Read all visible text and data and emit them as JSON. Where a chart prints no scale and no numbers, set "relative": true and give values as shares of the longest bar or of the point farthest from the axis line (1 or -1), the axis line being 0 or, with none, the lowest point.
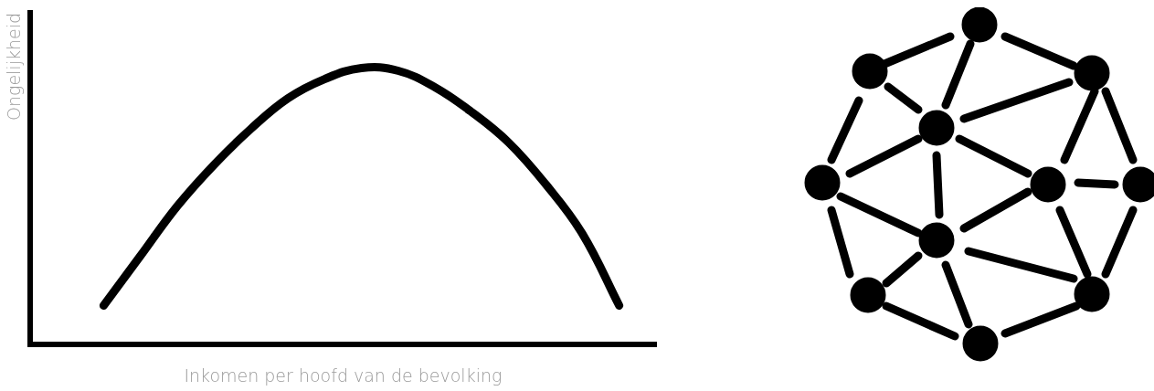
{
  "chart_data": {
    "type": "line",
    "relative": true,
    "grid": false,
    "legend": false,
    "marker": "none",
    "line_style": "solid",
    "xlabel": "Inkomen per hoofd van de bevolking",
    "ylabel": "Ongelijkheid",
    "categories": [
      null,
      null,
      null,
      null,
      null,
      null,
      null,
      null,
      null,
      null,
      null,
      null,
      null,
      null,
      null,
      null,
      null,
      null
    ],
    "series": [
      {
        "color": "#000000",
        "values": [
          null,
          null,
          0.14,
          0.32,
          0.5,
          0.65,
          0.78,
          0.89,
          0.96,
          1,
          0.99,
          0.93,
          0.84,
          0.73,
          0.58,
          0.4,
          0.14,
          null
        ]
      }
    ]
  }
}
